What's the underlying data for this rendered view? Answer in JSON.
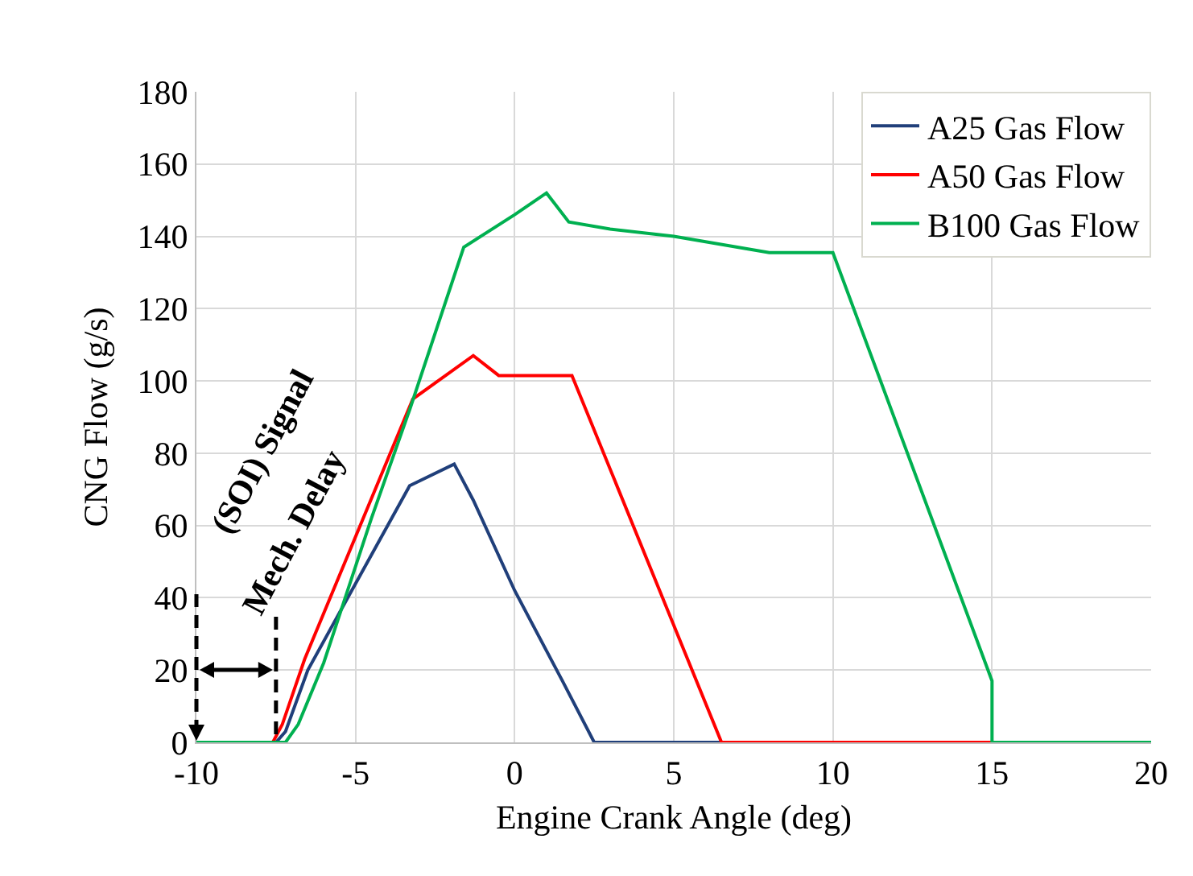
{
  "chart_data": {
    "type": "line",
    "xlabel": "Engine Crank Angle (deg)",
    "ylabel": "CNG Flow (g/s)",
    "xlim": [
      -10,
      20
    ],
    "xticks": [
      -10,
      -5,
      0,
      5,
      10,
      15,
      20
    ],
    "ylim": [
      0,
      180
    ],
    "yticks": [
      0,
      20,
      40,
      60,
      80,
      100,
      120,
      140,
      160,
      180
    ],
    "grid": true,
    "legend": "top right",
    "marker": "none",
    "line_style": "solid",
    "series": [
      {
        "name": "A25 Gas Flow",
        "color": "#203f7a",
        "x": [
          -10,
          -7.5,
          -7.2,
          -6.5,
          -3.3,
          -1.9,
          -1.3,
          0,
          1.5,
          2.5,
          5,
          10
        ],
        "values": [
          0,
          0,
          3,
          20,
          71,
          77,
          67,
          42,
          17,
          0,
          0,
          0
        ]
      },
      {
        "name": "A50 Gas Flow",
        "color": "#ff0000",
        "x": [
          -10,
          -7.6,
          -7.3,
          -6.6,
          -3.2,
          -1.3,
          -0.5,
          1.8,
          6.5,
          10,
          15
        ],
        "values": [
          0,
          0,
          5,
          23,
          95,
          107,
          101.5,
          101.5,
          0,
          0,
          0
        ]
      },
      {
        "name": "B100 Gas Flow",
        "color": "#00b050",
        "x": [
          -10,
          -7.2,
          -6.8,
          -6,
          -4.5,
          -3.3,
          -1.6,
          0,
          1,
          1.7,
          3,
          5,
          7,
          8,
          10,
          15,
          15,
          20
        ],
        "values": [
          0,
          0,
          5,
          22,
          62,
          92,
          137,
          146,
          152,
          144,
          142,
          140,
          137,
          135.5,
          135.5,
          17,
          0,
          0
        ]
      }
    ],
    "annotations": [
      "(SOI) Signal",
      {
        "text": "Mech. Delay",
        "x": -7.5,
        "y": 0
      }
    ]
  }
}
